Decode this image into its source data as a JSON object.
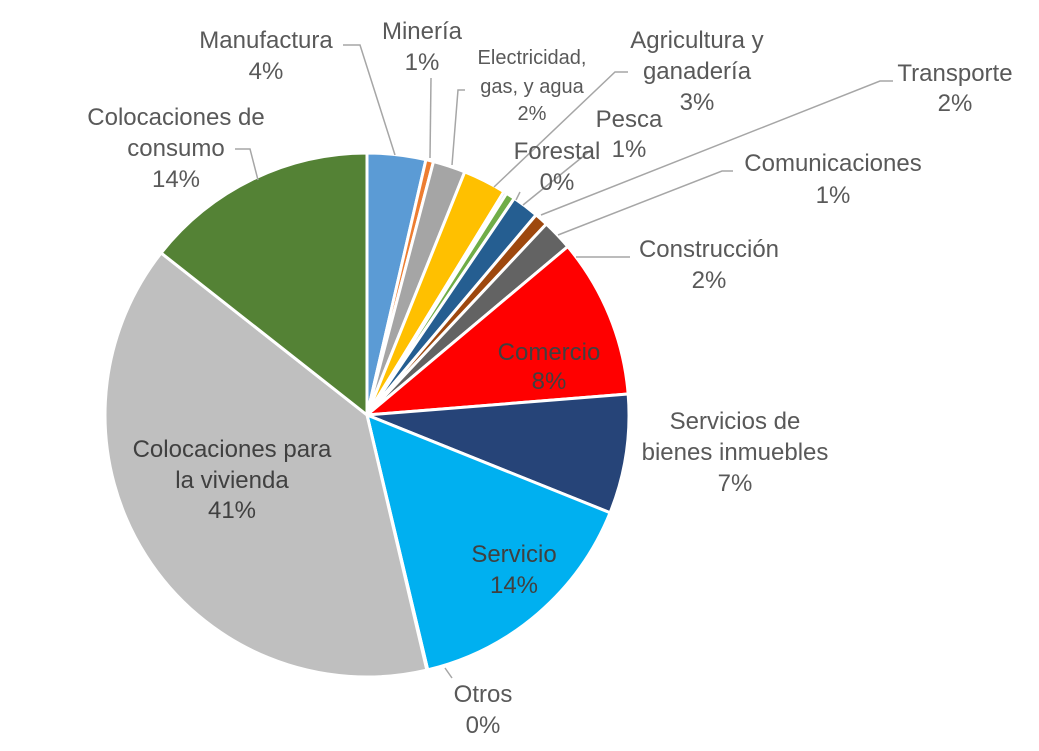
{
  "chart_data": {
    "type": "pie",
    "title": "",
    "slices": [
      {
        "label": "Manufactura",
        "value": 4,
        "display": "4%",
        "color": "#5b9bd5"
      },
      {
        "label": "Minería",
        "value": 1,
        "display": "1%",
        "color": "#ed7d31"
      },
      {
        "label": "Electricidad, gas, y agua",
        "value": 2,
        "display": "2%",
        "color": "#a5a5a5"
      },
      {
        "label": "Agricultura y ganadería",
        "value": 3,
        "display": "3%",
        "color": "#ffc000"
      },
      {
        "label": "Forestal",
        "value": 0,
        "display": "0%",
        "color": "#4472c4"
      },
      {
        "label": "Pesca",
        "value": 1,
        "display": "1%",
        "color": "#70ad47"
      },
      {
        "label": "Transporte",
        "value": 2,
        "display": "2%",
        "color": "#255e91"
      },
      {
        "label": "Comunicaciones",
        "value": 1,
        "display": "1%",
        "color": "#9e480e"
      },
      {
        "label": "Construcción",
        "value": 2,
        "display": "2%",
        "color": "#636363"
      },
      {
        "label": "Comercio",
        "value": 8,
        "display": "8%",
        "color": "#ff0000"
      },
      {
        "label": "Servicios de bienes inmuebles",
        "value": 7,
        "display": "7%",
        "color": "#264478"
      },
      {
        "label": "Servicio",
        "value": 14,
        "display": "14%",
        "color": "#00b0f0"
      },
      {
        "label": "Otros",
        "value": 0,
        "display": "0%",
        "color": "#d9d9d9"
      },
      {
        "label": "Colocaciones para la vivienda",
        "value": 41,
        "display": "41%",
        "color": "#bfbfbf"
      },
      {
        "label": "Colocaciones de consumo",
        "value": 14,
        "display": "14%",
        "color": "#548235"
      }
    ]
  }
}
